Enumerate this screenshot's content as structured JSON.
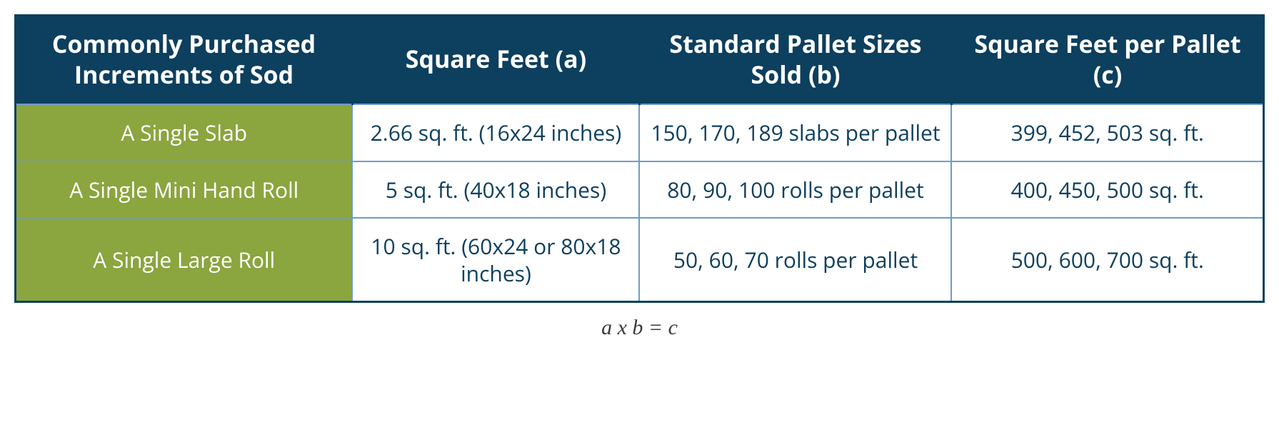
{
  "table": {
    "type": "table",
    "colors": {
      "header_bg": "#0d3f5e",
      "header_text": "#ffffff",
      "rowhead_bg": "#8ba53f",
      "rowhead_text": "#ffffff",
      "cell_bg": "#ffffff",
      "cell_text": "#0d3f5e",
      "border_outer": "#0d3f5e",
      "border_inner": "#6d9dc5"
    },
    "fonts": {
      "header_fontsize_pt": 26,
      "header_weight": "bold",
      "cell_fontsize_pt": 23,
      "caption_fontsize_pt": 22,
      "caption_style": "italic"
    },
    "column_widths_pct": [
      27,
      23,
      25,
      25
    ],
    "columns": [
      "Commonly Purchased Increments of Sod",
      "Square Feet (a)",
      "Standard Pallet Sizes Sold (b)",
      "Square Feet per Pallet (c)"
    ],
    "rows": [
      {
        "name": "A Single Slab",
        "sqft": "2.66 sq. ft. (16x24 inches)",
        "pallet_sizes": "150, 170, 189 slabs per pallet",
        "sqft_per_pallet": "399, 452, 503 sq. ft."
      },
      {
        "name": "A Single Mini Hand Roll",
        "sqft": "5 sq. ft. (40x18 inches)",
        "pallet_sizes": "80, 90, 100 rolls per pallet",
        "sqft_per_pallet": "400, 450, 500 sq. ft."
      },
      {
        "name": "A Single Large Roll",
        "sqft": "10 sq. ft. (60x24 or 80x18 inches)",
        "pallet_sizes": "50, 60, 70 rolls per pallet",
        "sqft_per_pallet": "500, 600, 700 sq. ft."
      }
    ],
    "caption": "a x b = c"
  }
}
